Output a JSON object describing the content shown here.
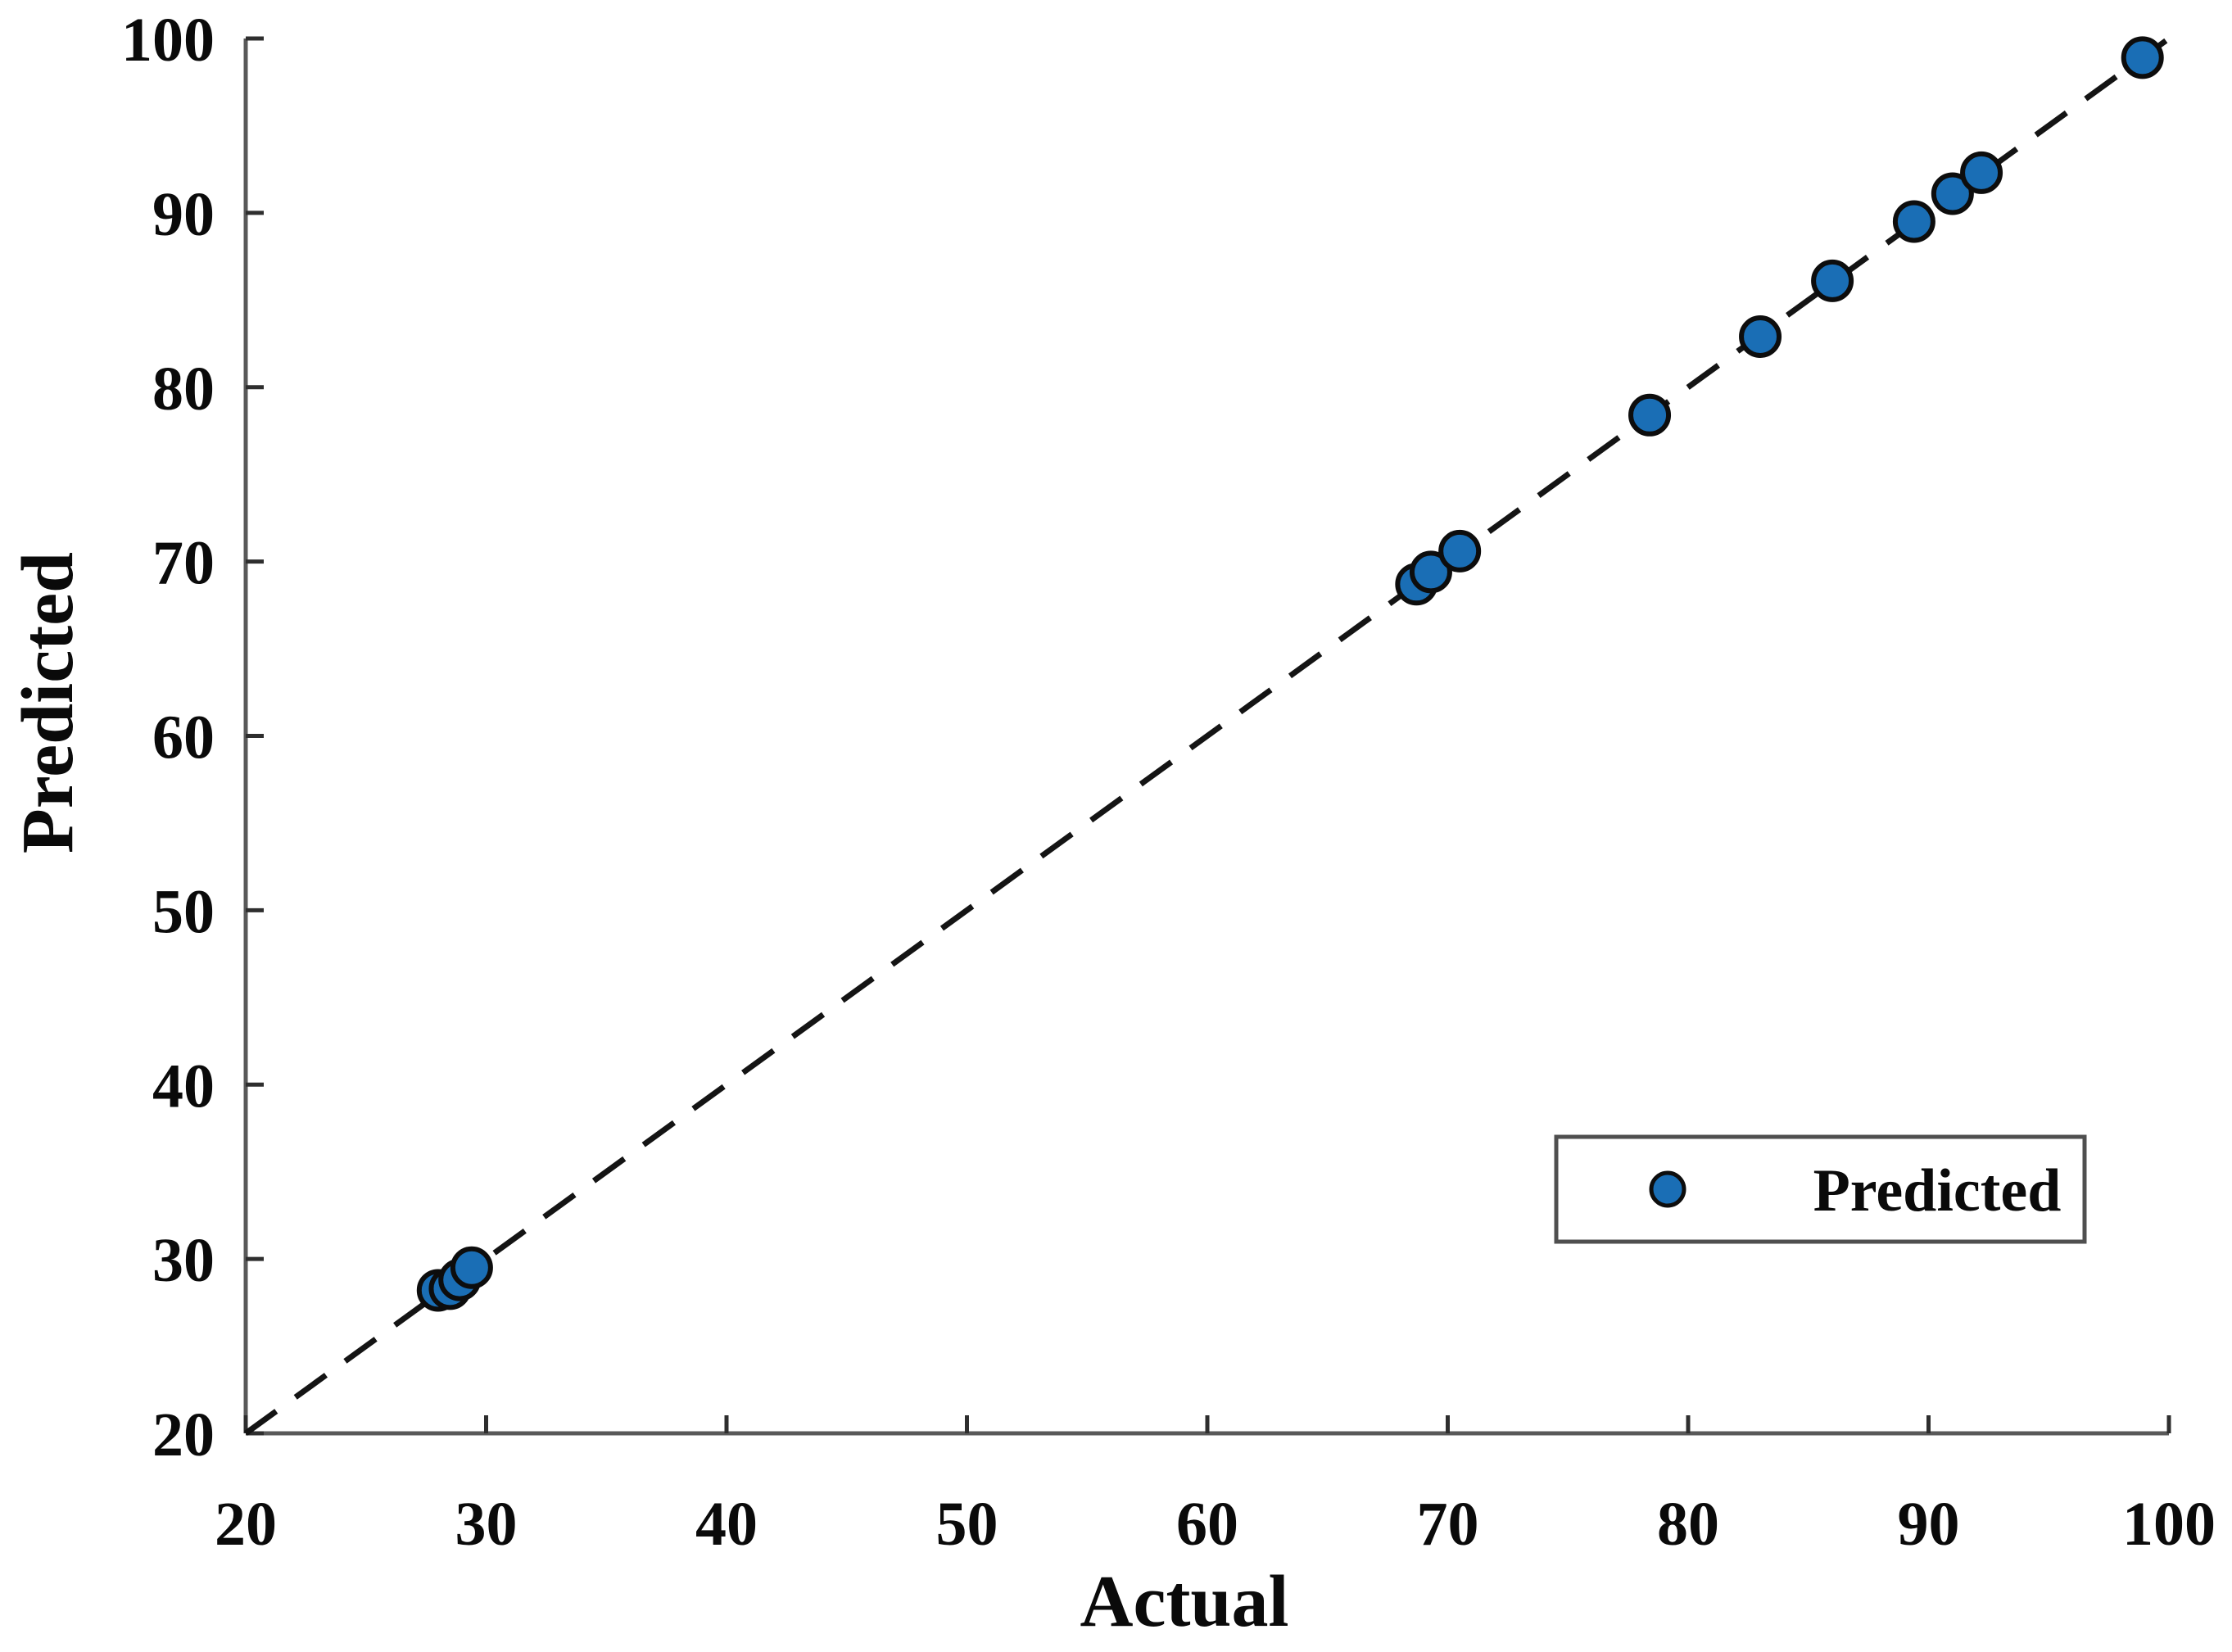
{
  "figure": {
    "background_color": "#ffffff",
    "axis_line_color": "#595959",
    "tick_color": "#2e2e2e",
    "text_color": "#0a0a0a"
  },
  "chart_data": {
    "type": "scatter",
    "title": "",
    "xlabel": "Actual",
    "ylabel": "Predicted",
    "xlim": [
      20,
      100
    ],
    "ylim": [
      20,
      100
    ],
    "x_ticks": [
      20,
      30,
      40,
      50,
      60,
      70,
      80,
      90,
      100
    ],
    "y_ticks": [
      20,
      30,
      40,
      50,
      60,
      70,
      80,
      90,
      100
    ],
    "grid": false,
    "box": "off",
    "tick_direction": "in",
    "series": [
      {
        "name": "Predicted",
        "marker": "circle",
        "marker_fill": "#1a6eb5",
        "marker_edge": "#0d0d0d",
        "points": [
          {
            "x": 28.0,
            "y": 28.2
          },
          {
            "x": 28.5,
            "y": 28.3
          },
          {
            "x": 28.9,
            "y": 28.8
          },
          {
            "x": 29.4,
            "y": 29.5
          },
          {
            "x": 68.7,
            "y": 68.7
          },
          {
            "x": 69.3,
            "y": 69.4
          },
          {
            "x": 70.5,
            "y": 70.6
          },
          {
            "x": 78.4,
            "y": 78.4
          },
          {
            "x": 83.0,
            "y": 82.9
          },
          {
            "x": 86.0,
            "y": 86.1
          },
          {
            "x": 89.4,
            "y": 89.5
          },
          {
            "x": 91.0,
            "y": 91.1
          },
          {
            "x": 92.2,
            "y": 92.3
          },
          {
            "x": 98.9,
            "y": 98.9
          }
        ]
      }
    ],
    "reference_line": {
      "type": "identity",
      "style": "dashed",
      "from": [
        20,
        20
      ],
      "to": [
        100,
        100
      ],
      "color": "#141414"
    },
    "legend": {
      "position": "lower-right",
      "border_color": "#4f4f4f",
      "background": "#ffffff",
      "entries": [
        {
          "label": "Predicted",
          "marker": "circle",
          "marker_fill": "#1a6eb5",
          "marker_edge": "#0d0d0d"
        }
      ]
    }
  }
}
